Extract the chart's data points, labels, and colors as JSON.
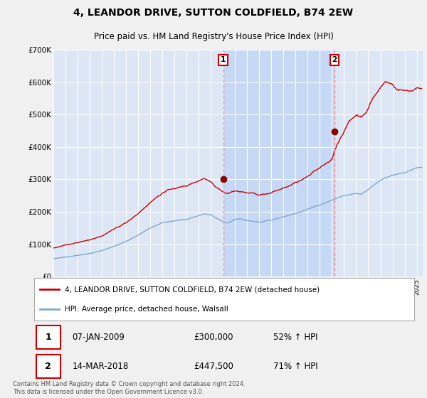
{
  "title": "4, LEANDOR DRIVE, SUTTON COLDFIELD, B74 2EW",
  "subtitle": "Price paid vs. HM Land Registry's House Price Index (HPI)",
  "ylabel_ticks": [
    "£0",
    "£100K",
    "£200K",
    "£300K",
    "£400K",
    "£500K",
    "£600K",
    "£700K"
  ],
  "ylim": [
    0,
    700000
  ],
  "background_color": "#f0f0f0",
  "plot_bg_color": "#dce6f5",
  "shade_bg_color": "#c5d8f5",
  "grid_color": "#ffffff",
  "legend_entry1": "4, LEANDOR DRIVE, SUTTON COLDFIELD, B74 2EW (detached house)",
  "legend_entry2": "HPI: Average price, detached house, Walsall",
  "marker1_date": "2009-01-07",
  "marker1_price": 300000,
  "marker1_label": "1",
  "marker2_date": "2018-03-14",
  "marker2_price": 447500,
  "marker2_label": "2",
  "copyright_text": "Contains HM Land Registry data © Crown copyright and database right 2024.\nThis data is licensed under the Open Government Licence v3.0.",
  "line1_color": "#cc0000",
  "line2_color": "#7aaad0",
  "marker_dot_color": "#880000",
  "vline_color": "#ff8888",
  "annotation_box_color": "#cc0000",
  "fig_width": 6.0,
  "fig_height": 5.6,
  "dpi": 100
}
